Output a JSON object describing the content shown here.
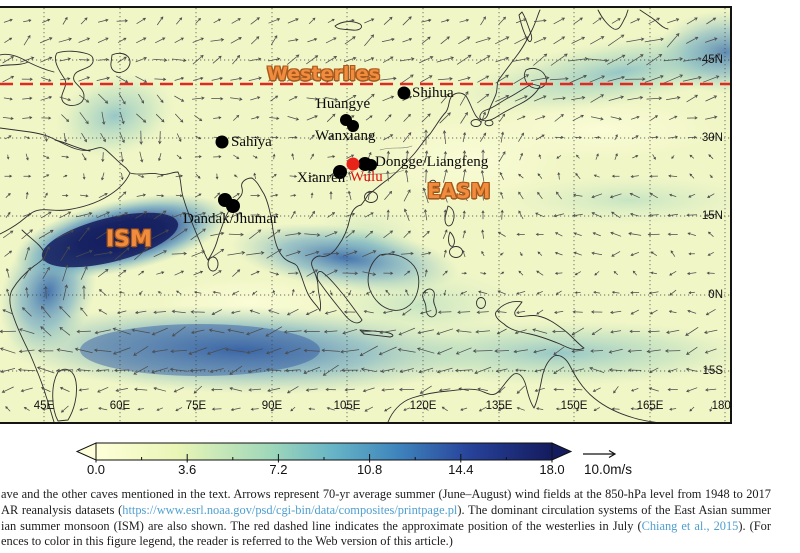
{
  "figure": {
    "type": "wind-field map",
    "region_labels": {
      "westerlies": "Westerlies",
      "ism": "ISM",
      "easm": "EASM"
    },
    "region_label_color": "#ef8c3e",
    "caves": [
      {
        "id": "shihua",
        "label": "Shihua"
      },
      {
        "id": "huangye",
        "label": "Huangye"
      },
      {
        "id": "wanxiang",
        "label": "Wanxiang"
      },
      {
        "id": "sahiya",
        "label": "Sahiya"
      },
      {
        "id": "dongge",
        "label": "Dongge/Liangfeng"
      },
      {
        "id": "xianren",
        "label": "Xianren"
      },
      {
        "id": "wulu",
        "label": "Wulu",
        "highlight": true
      },
      {
        "id": "dandak",
        "label": "Dandak/Jhumar"
      }
    ],
    "marker_color": "#000000",
    "highlight_marker_color": "#e8231a",
    "highlight_text_color": "#e01310",
    "westerlies_line_color": "#e02a20",
    "lat_labels": [
      "45N",
      "30N",
      "15N",
      "0N",
      "15S"
    ],
    "lon_labels": [
      "45E",
      "60E",
      "75E",
      "90E",
      "105E",
      "120E",
      "135E",
      "150E",
      "165E",
      "180E"
    ]
  },
  "colorbar": {
    "tick_labels": [
      "0.0",
      "3.6",
      "7.2",
      "10.8",
      "14.4",
      "18.0"
    ],
    "units": "m/s",
    "reference_arrow_label": "10.0m/s",
    "min_color": "#feffd8",
    "max_color": "#141b5e"
  },
  "caption": {
    "lines": [
      [
        {
          "t": "ave and the other caves mentioned in the text. Arrows represent 70-yr average summer (June–August) wind fields at the 850-hPa level from 1948 to 2017"
        }
      ],
      [
        {
          "t": "AR reanalysis datasets ("
        },
        {
          "t": "https://www.esrl.noaa.gov/psd/cgi-bin/data/composites/printpage.pl",
          "link": true
        },
        {
          "t": "). The dominant circulation systems of the East Asian summer"
        }
      ],
      [
        {
          "t": "ian summer monsoon (ISM) are also shown. The red dashed line indicates the approximate position of the westerlies in July ("
        },
        {
          "t": "Chiang et al., 2015",
          "link": true
        },
        {
          "t": "). (For"
        }
      ],
      [
        {
          "t": "ences to color in this figure legend, the reader is referred to the Web version of this article.)"
        }
      ]
    ]
  }
}
